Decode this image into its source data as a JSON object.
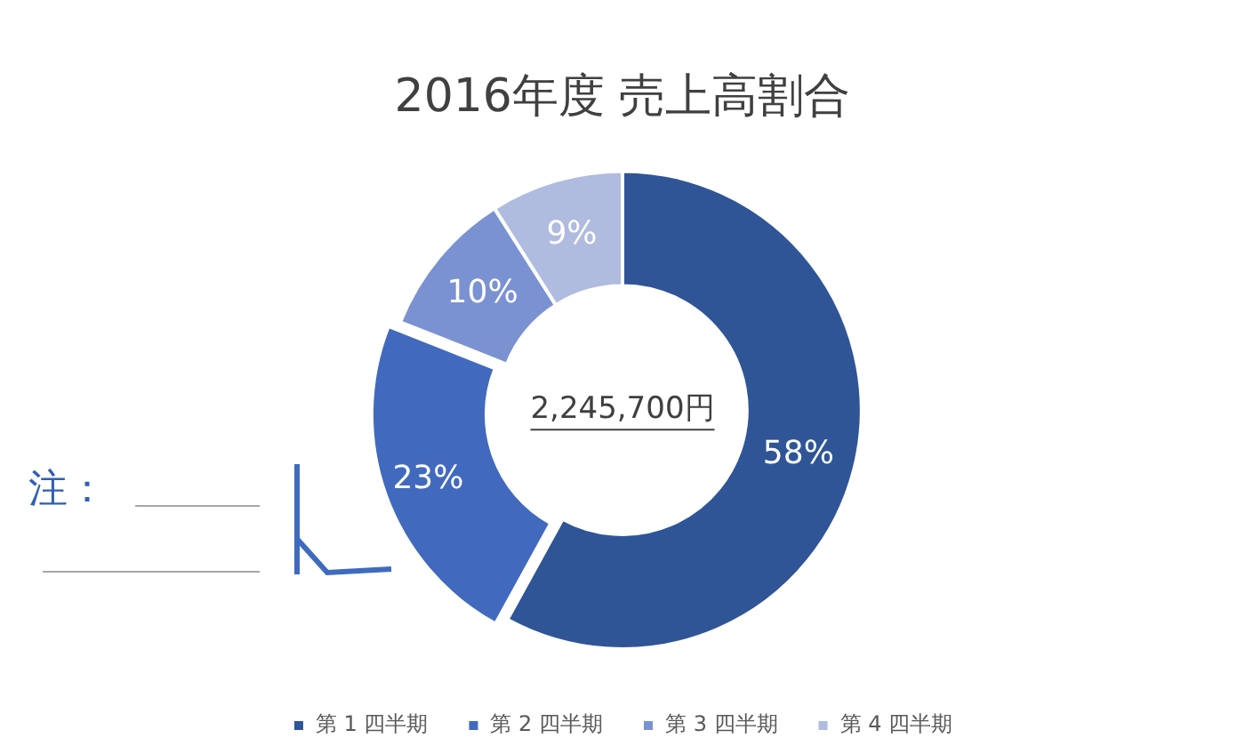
{
  "chart_data": {
    "type": "donut",
    "title": "2016年度 売上高割合",
    "categories": [
      "第 1 四半期",
      "第 2 四半期",
      "第 3 四半期",
      "第 4 四半期"
    ],
    "values": [
      58,
      23,
      10,
      9
    ],
    "colors": [
      "#2f5597",
      "#4169be",
      "#7a92d2",
      "#b0bbe0"
    ],
    "value_labels": [
      "58%",
      "23%",
      "10%",
      "9%"
    ],
    "legend": "bottom",
    "annotations": [
      "注：",
      "2,245,700円"
    ]
  }
}
